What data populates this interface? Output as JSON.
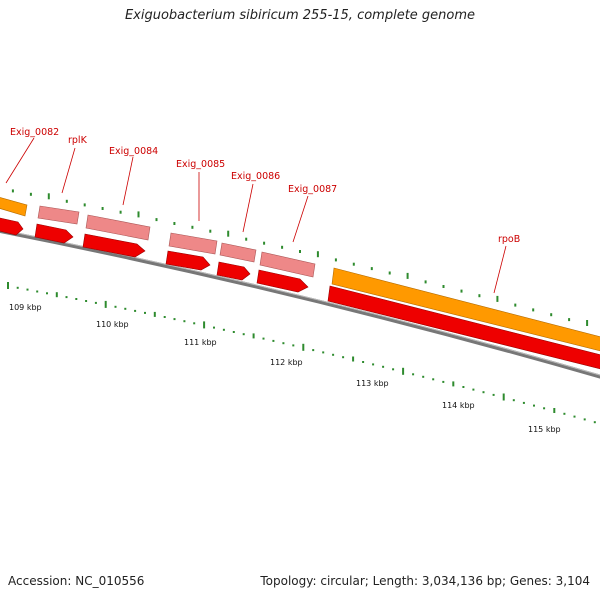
{
  "title": "Exiguobacterium sibiricum 255-15, complete genome",
  "footer": {
    "accession": "Accession: NC_010556",
    "summary": "Topology: circular; Length: 3,034,136 bp; Genes: 3,104"
  },
  "colors": {
    "gene_orange": "#ff9900",
    "gene_pink": "#ee8888",
    "cds_red": "#ee0000",
    "backbone": "#777777",
    "tick_green": "#2e8b2e",
    "label_red": "#cc0000"
  },
  "gene_labels": [
    "Exig_0082",
    "rplK",
    "Exig_0084",
    "Exig_0085",
    "Exig_0086",
    "Exig_0087",
    "rpoB"
  ],
  "scale_labels": [
    "109 kbp",
    "110 kbp",
    "111 kbp",
    "112 kbp",
    "113 kbp",
    "114 kbp",
    "115 kbp"
  ]
}
